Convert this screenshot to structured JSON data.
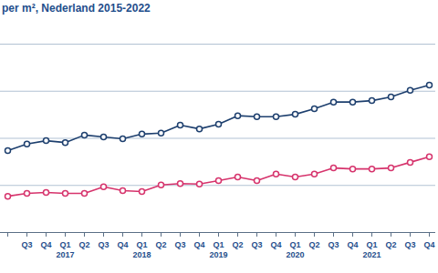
{
  "chart_data": {
    "type": "line",
    "title": "per m², Nederland 2015-2022",
    "categories": [
      null,
      "Q3",
      "Q4",
      "Q1\n2017",
      "Q2",
      "Q3",
      "Q4",
      "Q1\n2018",
      "Q2",
      "Q3",
      "Q4",
      "Q1\n2019",
      "Q2",
      "Q3",
      "Q4",
      "Q1\n2020",
      "Q2",
      "Q3",
      "Q4",
      "Q1\n2021",
      "Q2",
      "Q3",
      "Q4"
    ],
    "series": [
      {
        "color": "#1d3f6e",
        "marker": "circle",
        "values": [
          1.74,
          1.88,
          1.95,
          1.91,
          2.07,
          2.03,
          1.99,
          2.09,
          2.11,
          2.28,
          2.2,
          2.3,
          2.48,
          2.46,
          2.46,
          2.51,
          2.63,
          2.77,
          2.77,
          2.8,
          2.88,
          3.02,
          3.13
        ]
      },
      {
        "color": "#d6336c",
        "marker": "circle",
        "values": [
          0.77,
          0.83,
          0.85,
          0.83,
          0.83,
          0.97,
          0.89,
          0.87,
          1.01,
          1.04,
          1.03,
          1.1,
          1.18,
          1.1,
          1.24,
          1.18,
          1.24,
          1.37,
          1.35,
          1.35,
          1.37,
          1.49,
          1.61
        ]
      }
    ],
    "ylim": [
      0,
      4
    ],
    "yticks": [
      0,
      1,
      2,
      3,
      4
    ],
    "grid": true,
    "tick_labels": "x"
  }
}
